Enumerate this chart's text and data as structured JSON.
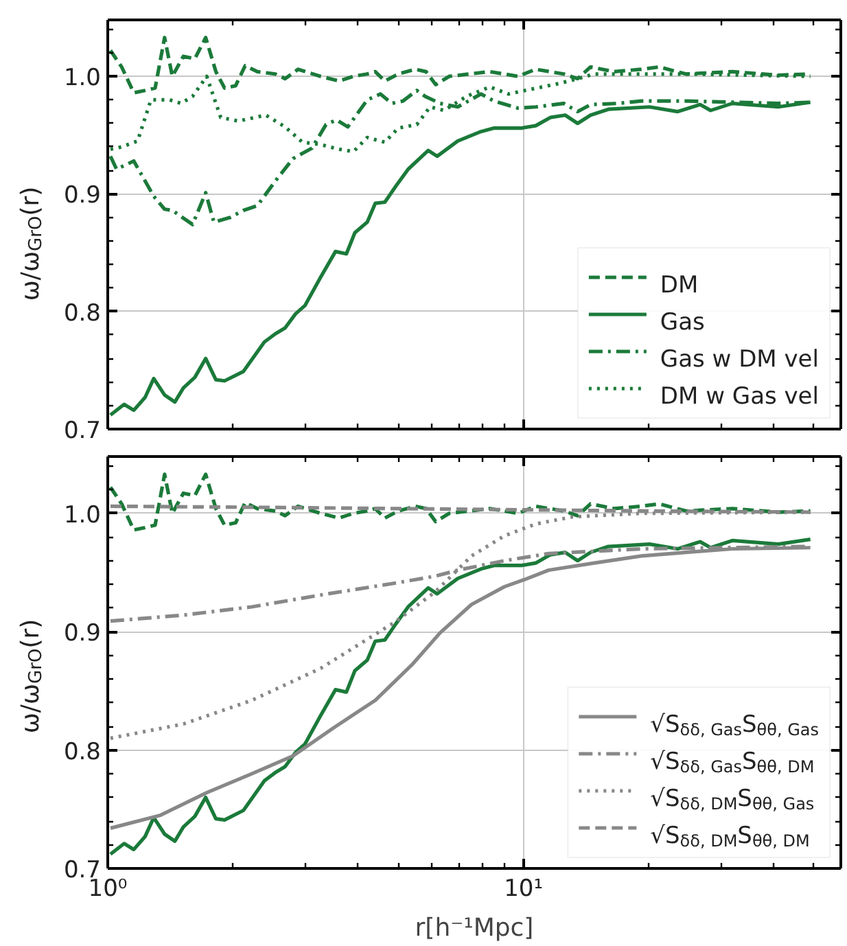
{
  "chart_data": [
    {
      "type": "line",
      "ylabel": "ω/ω$_{GrO}$(r)",
      "log": "x",
      "grid": true,
      "legend": "bottom right",
      "tick_labels": "y",
      "xlim": [
        1,
        58
      ],
      "ylim": [
        0.7,
        1.048
      ],
      "xticks": [
        {
          "value": 1,
          "label": null
        },
        {
          "value": 2,
          "label": null
        },
        {
          "value": 3,
          "label": null
        },
        {
          "value": 4,
          "label": null
        },
        {
          "value": 5,
          "label": null
        },
        {
          "value": 6,
          "label": null
        },
        {
          "value": 7,
          "label": null
        },
        {
          "value": 8,
          "label": null
        },
        {
          "value": 9,
          "label": null
        },
        {
          "value": 10,
          "label": null
        },
        {
          "value": 20,
          "label": null
        },
        {
          "value": 30,
          "label": null
        },
        {
          "value": 40,
          "label": null
        },
        {
          "value": 50,
          "label": null
        }
      ],
      "yticks": [
        0.7,
        {
          "value": 0.72,
          "label": null
        },
        {
          "value": 0.74,
          "label": null
        },
        {
          "value": 0.76,
          "label": null
        },
        {
          "value": 0.78,
          "label": null
        },
        0.8,
        {
          "value": 0.82,
          "label": null
        },
        {
          "value": 0.84,
          "label": null
        },
        {
          "value": 0.86,
          "label": null
        },
        {
          "value": 0.88,
          "label": null
        },
        0.9,
        {
          "value": 0.92,
          "label": null
        },
        {
          "value": 0.94,
          "label": null
        },
        {
          "value": 0.96,
          "label": null
        },
        {
          "value": 0.98,
          "label": null
        },
        {
          "value": 1.0,
          "label": "1.0"
        },
        {
          "value": 1.02,
          "label": null
        },
        {
          "value": 1.04,
          "label": null
        }
      ],
      "series": [
        {
          "name": "DM",
          "color": "#1b7a3a",
          "line_style": "dashed",
          "x": [
            1.015,
            1.08,
            1.155,
            1.23,
            1.3,
            1.37,
            1.43,
            1.52,
            1.62,
            1.72,
            1.82,
            1.91,
            2.03,
            2.14,
            2.29,
            2.53,
            2.67,
            2.87,
            3.25,
            3.6,
            3.9,
            4.21,
            4.4,
            4.64,
            5.0,
            5.49,
            5.83,
            6.15,
            6.63,
            8.3,
            9.7,
            10.7,
            12.5,
            13.5,
            14.5,
            16.5,
            19.2,
            21.2,
            24.6,
            31.8,
            41,
            49
          ],
          "values": [
            1.022,
            1.008,
            0.986,
            0.988,
            0.99,
            1.033,
            1.0,
            1.017,
            1.015,
            1.033,
            1.004,
            0.99,
            0.992,
            1.009,
            1.004,
            1.002,
            0.998,
            1.006,
            1.0,
            0.996,
            1.0,
            1.002,
            1.004,
            0.996,
            1.002,
            1.006,
            1.004,
            0.993,
            1.0,
            1.004,
            1.0,
            1.006,
            1.002,
            0.998,
            1.008,
            1.004,
            1.006,
            1.008,
            1.002,
            1.004,
            1.001,
            1.002
          ]
        },
        {
          "name": "Gas",
          "color": "#1b7a3a",
          "line_style": "solid",
          "x": [
            1.015,
            1.095,
            1.155,
            1.23,
            1.29,
            1.37,
            1.45,
            1.52,
            1.62,
            1.72,
            1.82,
            1.91,
            2.12,
            2.38,
            2.53,
            2.67,
            2.83,
            2.98,
            3.25,
            3.53,
            3.75,
            3.93,
            4.21,
            4.4,
            4.64,
            4.94,
            5.28,
            5.9,
            6.2,
            6.95,
            7.9,
            8.5,
            9.9,
            10.7,
            11.6,
            12.6,
            13.5,
            14.5,
            16.0,
            20.1,
            23.5,
            26.6,
            28.2,
            31.8,
            41,
            49
          ],
          "values": [
            0.712,
            0.721,
            0.716,
            0.727,
            0.743,
            0.729,
            0.723,
            0.735,
            0.744,
            0.76,
            0.742,
            0.741,
            0.749,
            0.774,
            0.781,
            0.786,
            0.798,
            0.805,
            0.829,
            0.851,
            0.849,
            0.867,
            0.876,
            0.892,
            0.893,
            0.907,
            0.921,
            0.937,
            0.932,
            0.945,
            0.953,
            0.956,
            0.956,
            0.958,
            0.965,
            0.967,
            0.96,
            0.967,
            0.972,
            0.974,
            0.97,
            0.976,
            0.971,
            0.977,
            0.974,
            0.978
          ]
        },
        {
          "name": "Gas w DM vel",
          "color": "#1b7a3a",
          "line_style": "dashdot",
          "x": [
            1.015,
            1.05,
            1.155,
            1.29,
            1.37,
            1.43,
            1.6,
            1.72,
            1.8,
            1.97,
            2.12,
            2.29,
            2.53,
            2.79,
            3.1,
            3.35,
            3.55,
            3.78,
            4.21,
            4.53,
            4.82,
            5.13,
            5.54,
            5.8,
            6.3,
            6.95,
            7.9,
            8.5,
            9.7,
            10.7,
            12.5,
            13.5,
            14.5,
            16.9,
            19.2,
            24.6,
            31.8,
            41,
            49
          ],
          "values": [
            0.932,
            0.921,
            0.928,
            0.898,
            0.887,
            0.886,
            0.874,
            0.901,
            0.876,
            0.88,
            0.886,
            0.89,
            0.911,
            0.93,
            0.939,
            0.959,
            0.963,
            0.957,
            0.98,
            0.985,
            0.977,
            0.979,
            0.988,
            0.983,
            0.977,
            0.974,
            0.985,
            0.979,
            0.973,
            0.974,
            0.977,
            0.97,
            0.976,
            0.977,
            0.979,
            0.979,
            0.978,
            0.977,
            0.978
          ]
        },
        {
          "name": "DM w Gas vel",
          "color": "#1b7a3a",
          "line_style": "dotted",
          "x": [
            1.015,
            1.08,
            1.18,
            1.27,
            1.41,
            1.5,
            1.6,
            1.73,
            1.87,
            2.06,
            2.4,
            2.67,
            2.94,
            3.25,
            3.6,
            3.9,
            4.21,
            4.64,
            5.0,
            5.54,
            5.96,
            6.44,
            7.3,
            8.3,
            9.2,
            10.1,
            12.2,
            13.5,
            14.8,
            19.2,
            24.6,
            49
          ],
          "values": [
            0.938,
            0.94,
            0.945,
            0.98,
            0.98,
            0.977,
            0.983,
            1.0,
            0.965,
            0.962,
            0.967,
            0.957,
            0.944,
            0.942,
            0.938,
            0.936,
            0.948,
            0.944,
            0.956,
            0.959,
            0.974,
            0.971,
            0.983,
            0.991,
            0.985,
            0.988,
            0.994,
            0.998,
            1.002,
            1.002,
            1.002,
            1.0
          ]
        }
      ]
    },
    {
      "type": "line",
      "ylabel": "ω/ω$_{GrO}$(r)",
      "xlabel": "r[h⁻¹Mpc]",
      "log": "x",
      "grid": true,
      "legend": "bottom right",
      "xlim": [
        1,
        58
      ],
      "ylim": [
        0.7,
        1.048
      ],
      "xticks": [
        {
          "value": 1,
          "label": "10⁰"
        },
        {
          "value": 2,
          "label": null
        },
        {
          "value": 3,
          "label": null
        },
        {
          "value": 4,
          "label": null
        },
        {
          "value": 5,
          "label": null
        },
        {
          "value": 6,
          "label": null
        },
        {
          "value": 7,
          "label": null
        },
        {
          "value": 8,
          "label": null
        },
        {
          "value": 9,
          "label": null
        },
        {
          "value": 10,
          "label": "10¹"
        },
        {
          "value": 20,
          "label": null
        },
        {
          "value": 30,
          "label": null
        },
        {
          "value": 40,
          "label": null
        },
        {
          "value": 50,
          "label": null
        }
      ],
      "yticks": [
        0.7,
        {
          "value": 0.72,
          "label": null
        },
        {
          "value": 0.74,
          "label": null
        },
        {
          "value": 0.76,
          "label": null
        },
        {
          "value": 0.78,
          "label": null
        },
        0.8,
        {
          "value": 0.82,
          "label": null
        },
        {
          "value": 0.84,
          "label": null
        },
        {
          "value": 0.86,
          "label": null
        },
        {
          "value": 0.88,
          "label": null
        },
        0.9,
        {
          "value": 0.92,
          "label": null
        },
        {
          "value": 0.94,
          "label": null
        },
        {
          "value": 0.96,
          "label": null
        },
        {
          "value": 0.98,
          "label": null
        },
        {
          "value": 1.0,
          "label": "1.0"
        },
        {
          "value": 1.02,
          "label": null
        },
        {
          "value": 1.04,
          "label": null
        }
      ],
      "series": [
        {
          "color": "#1b7a3a",
          "line_style": "dashed",
          "x": [
            1.015,
            1.08,
            1.155,
            1.23,
            1.3,
            1.37,
            1.43,
            1.52,
            1.62,
            1.72,
            1.82,
            1.91,
            2.03,
            2.14,
            2.29,
            2.53,
            2.67,
            2.87,
            3.25,
            3.6,
            3.9,
            4.21,
            4.4,
            4.64,
            5.0,
            5.49,
            5.83,
            6.15,
            6.63,
            8.3,
            9.7,
            10.7,
            12.5,
            13.5,
            14.5,
            16.5,
            19.2,
            21.2,
            24.6,
            31.8,
            41,
            49
          ],
          "values": [
            1.022,
            1.008,
            0.986,
            0.988,
            0.99,
            1.033,
            1.0,
            1.017,
            1.015,
            1.033,
            1.004,
            0.99,
            0.992,
            1.009,
            1.004,
            1.002,
            0.998,
            1.006,
            1.0,
            0.996,
            1.0,
            1.002,
            1.004,
            0.996,
            1.002,
            1.006,
            1.004,
            0.993,
            1.0,
            1.004,
            1.0,
            1.006,
            1.002,
            0.998,
            1.008,
            1.004,
            1.006,
            1.008,
            1.002,
            1.004,
            1.001,
            1.002
          ]
        },
        {
          "color": "#1b7a3a",
          "line_style": "solid",
          "x": [
            1.015,
            1.095,
            1.155,
            1.23,
            1.29,
            1.37,
            1.45,
            1.52,
            1.62,
            1.72,
            1.82,
            1.91,
            2.12,
            2.38,
            2.53,
            2.67,
            2.83,
            2.98,
            3.25,
            3.53,
            3.75,
            3.93,
            4.21,
            4.4,
            4.64,
            4.94,
            5.28,
            5.9,
            6.2,
            6.95,
            7.9,
            8.5,
            9.9,
            10.7,
            11.6,
            12.6,
            13.5,
            14.5,
            16.0,
            20.1,
            23.5,
            26.6,
            28.2,
            31.8,
            41,
            49
          ],
          "values": [
            0.712,
            0.721,
            0.716,
            0.727,
            0.743,
            0.729,
            0.723,
            0.735,
            0.744,
            0.76,
            0.742,
            0.741,
            0.749,
            0.774,
            0.781,
            0.786,
            0.798,
            0.805,
            0.829,
            0.851,
            0.849,
            0.867,
            0.876,
            0.892,
            0.893,
            0.907,
            0.921,
            0.937,
            0.932,
            0.945,
            0.953,
            0.956,
            0.956,
            0.958,
            0.965,
            0.967,
            0.96,
            0.967,
            0.972,
            0.974,
            0.97,
            0.976,
            0.971,
            0.977,
            0.974,
            0.978
          ]
        },
        {
          "name": "√S$_{δδ, Gas}$S$_{θθ, Gas}$",
          "color": "#888888",
          "line_style": "solid",
          "x": [
            1.015,
            1.34,
            1.73,
            2.22,
            2.79,
            3.5,
            4.4,
            5.39,
            6.3,
            7.5,
            9.0,
            10.05,
            11.5,
            14.8,
            19.2,
            24.6,
            31.8,
            49
          ],
          "values": [
            0.734,
            0.745,
            0.764,
            0.78,
            0.795,
            0.819,
            0.842,
            0.872,
            0.899,
            0.923,
            0.938,
            0.944,
            0.952,
            0.958,
            0.964,
            0.967,
            0.97,
            0.971
          ]
        },
        {
          "name": "√S$_{δδ, Gas}$S$_{θθ, DM}$",
          "color": "#888888",
          "line_style": "dashdot",
          "x": [
            1.015,
            1.52,
            2.22,
            3.25,
            4.9,
            6.15,
            6.95,
            9.0,
            11.5,
            19.2,
            49
          ],
          "values": [
            0.909,
            0.914,
            0.921,
            0.931,
            0.941,
            0.947,
            0.952,
            0.96,
            0.966,
            0.97,
            0.972
          ]
        },
        {
          "name": "√S$_{δδ, DM}$S$_{θθ, Gas}$",
          "color": "#888888",
          "line_style": "dotted",
          "x": [
            1.015,
            1.52,
            2.22,
            3.25,
            4.9,
            6.15,
            7.5,
            9.0,
            10.7,
            13.1,
            19.2,
            49
          ],
          "values": [
            0.81,
            0.822,
            0.842,
            0.869,
            0.908,
            0.934,
            0.964,
            0.981,
            0.991,
            0.997,
            1.0,
            1.001
          ]
        },
        {
          "name": "√S$_{δδ, DM}$S$_{θθ, DM}$",
          "color": "#888888",
          "line_style": "dashed",
          "x": [
            1.015,
            2.5,
            5.0,
            10.0,
            20.0,
            49
          ],
          "values": [
            1.006,
            1.005,
            1.004,
            1.003,
            1.002,
            1.001
          ]
        }
      ]
    }
  ]
}
